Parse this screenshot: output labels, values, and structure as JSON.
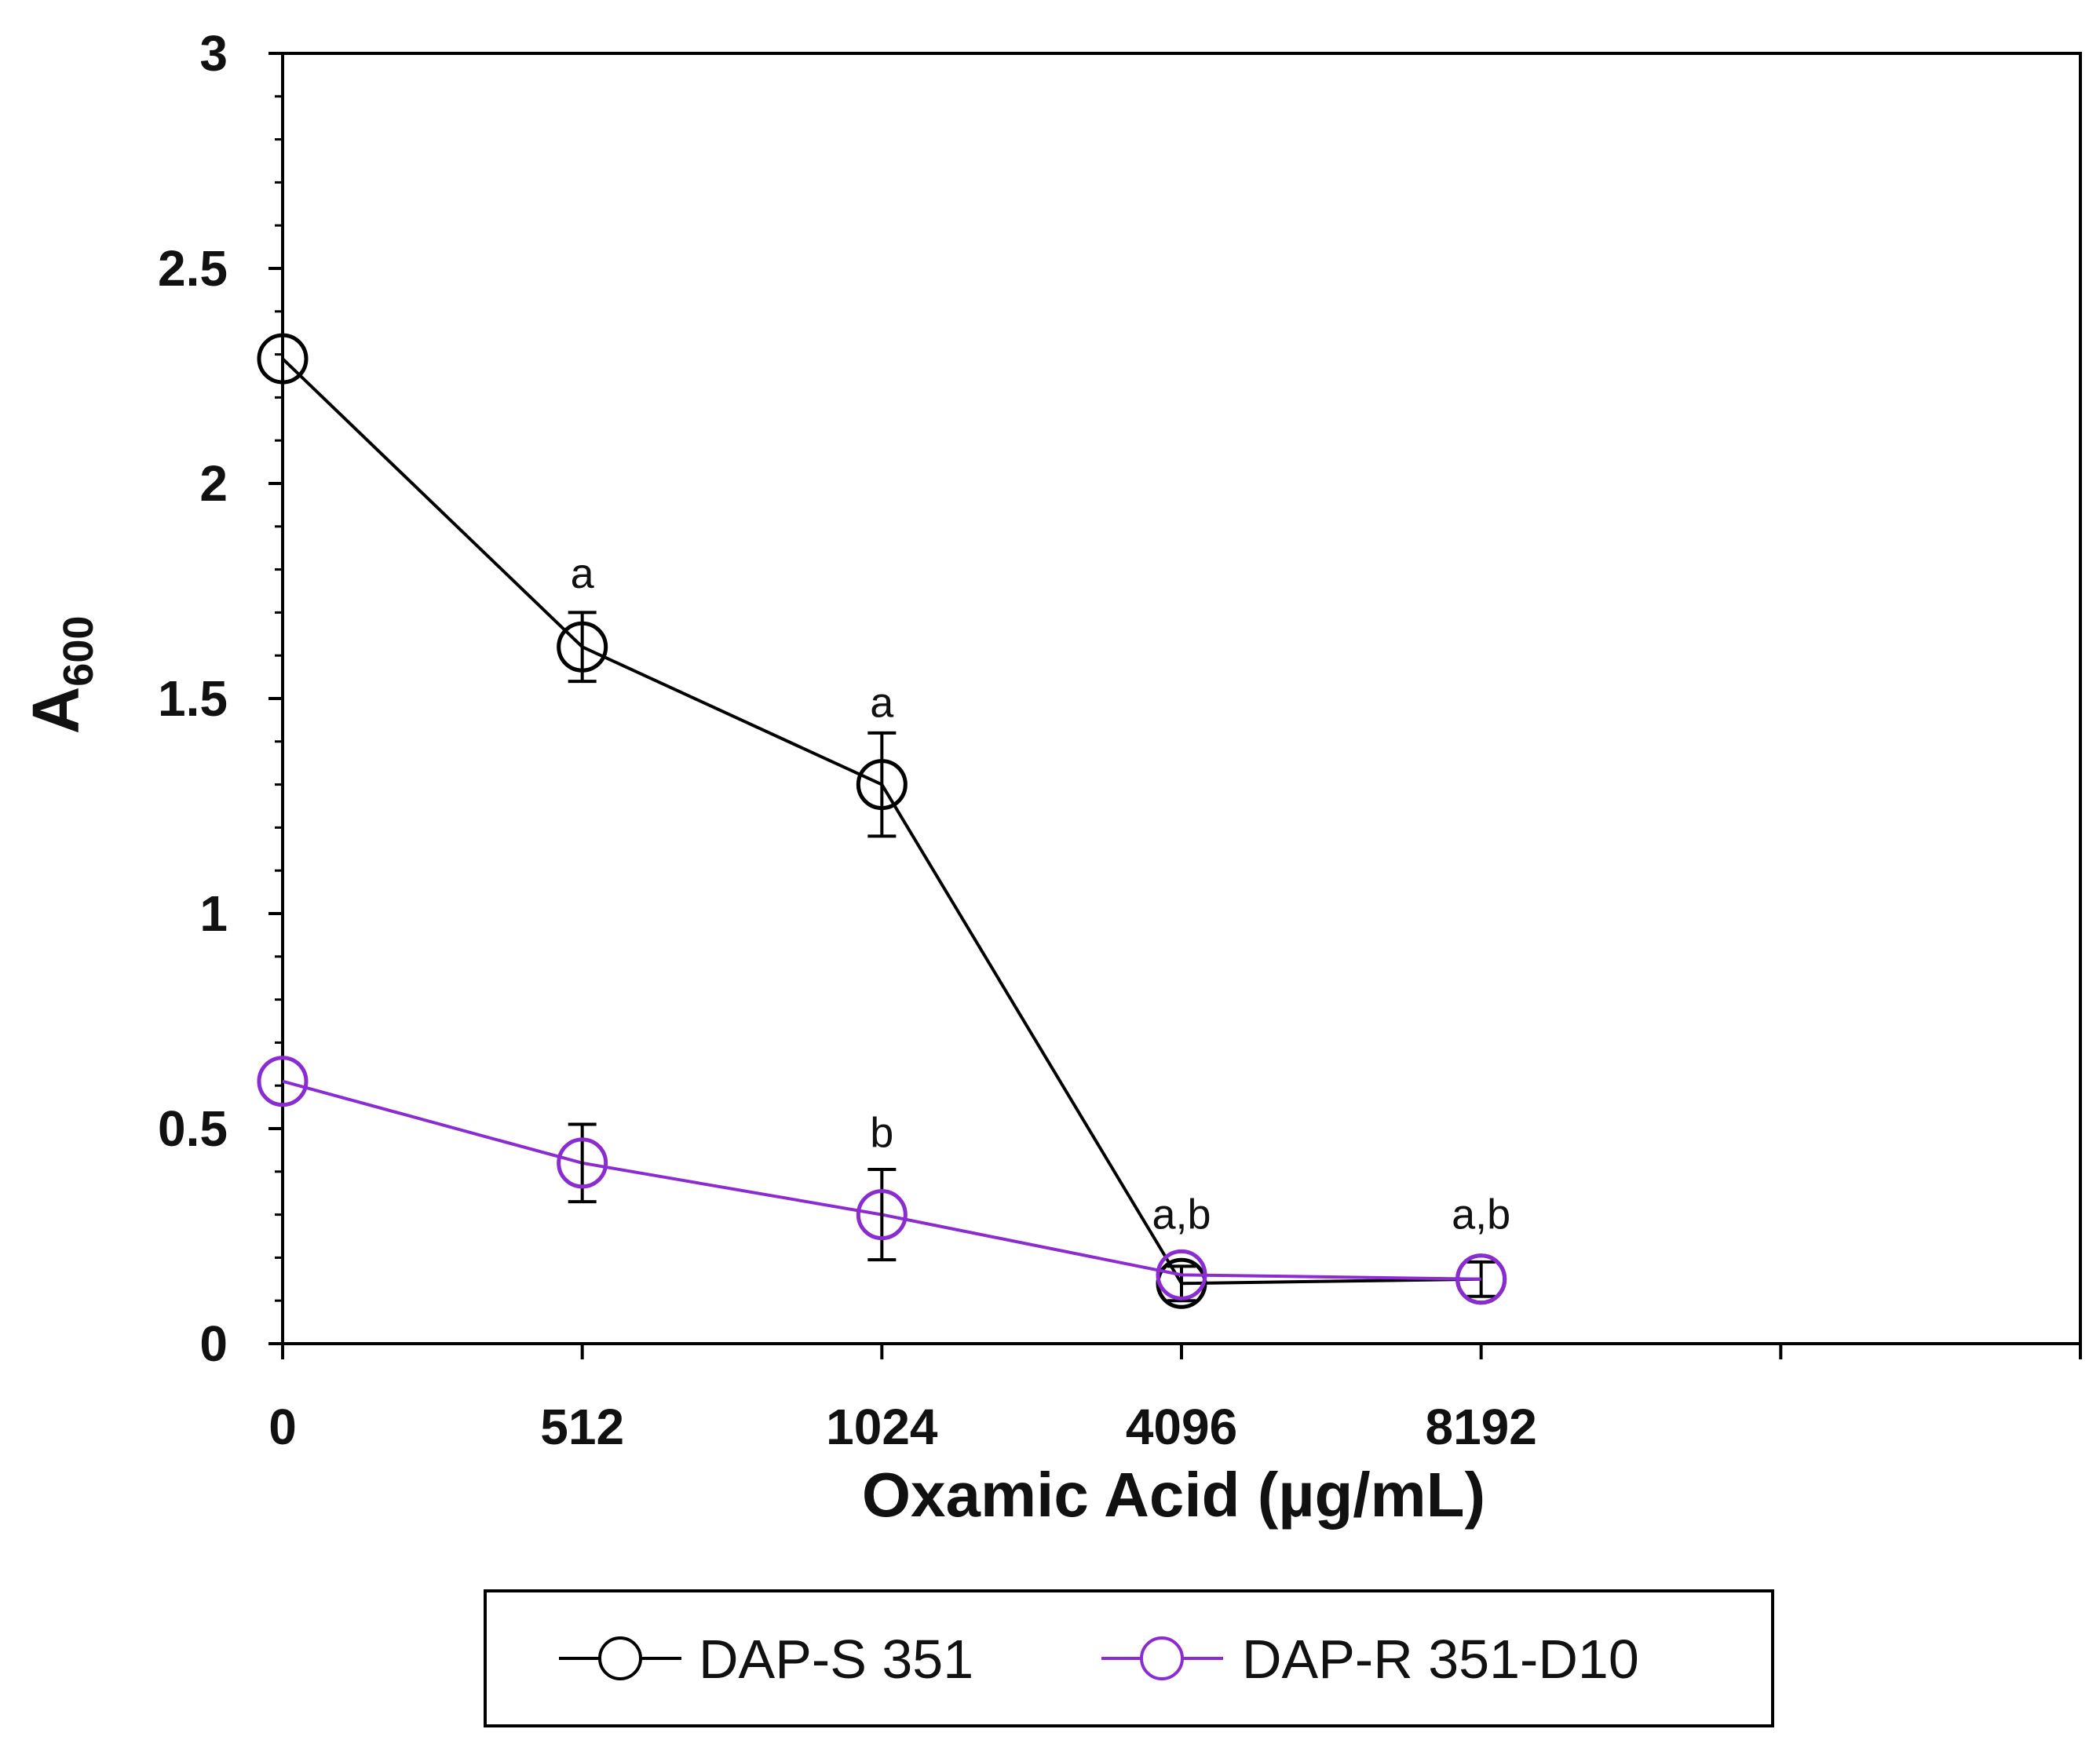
{
  "chart_data": {
    "type": "line",
    "title": "",
    "xlabel": "Oxamic Acid (µg/mL)",
    "ylabel_main": "A",
    "ylabel_sub": "600",
    "categories": [
      "0",
      "512",
      "1024",
      "4096",
      "8192"
    ],
    "ylim": [
      0,
      3
    ],
    "yticks": [
      0,
      0.5,
      1,
      1.5,
      2,
      2.5,
      3
    ],
    "ytick_labels": [
      "0",
      "0.5",
      "1",
      "1.5",
      "2",
      "2.5",
      "3"
    ],
    "x_slots": 6,
    "grid": false,
    "legend_position": "bottom",
    "series": [
      {
        "name": "DAP-S 351",
        "color": "#000000",
        "values": [
          2.29,
          1.62,
          1.3,
          0.14,
          0.15
        ],
        "errors": [
          0.0,
          0.08,
          0.12,
          0.04,
          0.04
        ]
      },
      {
        "name": "DAP-R 351-D10",
        "color": "#8B2BD2",
        "values": [
          0.61,
          0.42,
          0.3,
          0.16,
          0.15
        ],
        "errors": [
          0.0,
          0.09,
          0.105,
          0.0,
          0.0
        ]
      }
    ],
    "annotations": [
      {
        "category": "512",
        "value": 1.79,
        "text": "a"
      },
      {
        "category": "1024",
        "value": 1.49,
        "text": "a"
      },
      {
        "category": "1024",
        "value": 0.49,
        "text": "b"
      },
      {
        "category": "4096",
        "value": 0.3,
        "text": "a,b"
      },
      {
        "category": "8192",
        "value": 0.3,
        "text": "a,b"
      }
    ]
  }
}
